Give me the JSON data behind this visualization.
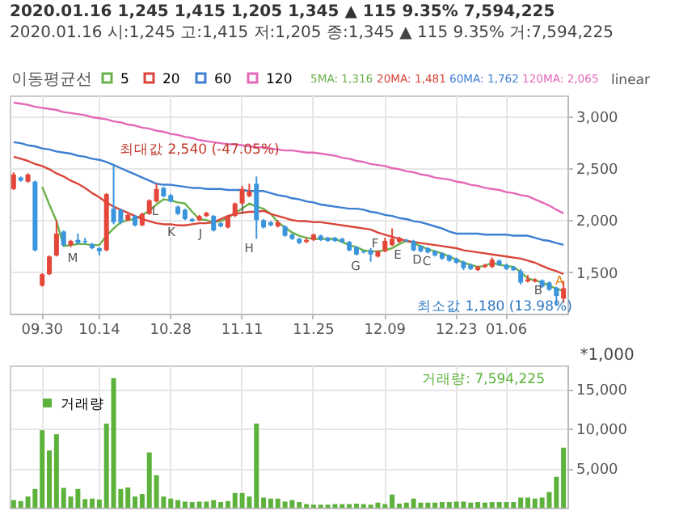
{
  "chart_data": [
    {
      "type": "candlestick",
      "title": "2020.01.16  1,245  1,415  1,205  1,345 ▲ 115 9.35%  7,594,225",
      "subtitle": "2020.01.16 시:1,245 고:1,415 저:1,205 종:1,345 ▲ 115 9.35% 거:7,594,225",
      "legend_title": "이동평균선",
      "categories": [
        null,
        null,
        null,
        null,
        "09.30",
        null,
        null,
        null,
        null,
        null,
        null,
        null,
        "10.14",
        null,
        null,
        null,
        null,
        null,
        null,
        null,
        null,
        null,
        "10.28",
        null,
        null,
        null,
        null,
        null,
        null,
        null,
        null,
        null,
        "11.11",
        null,
        null,
        null,
        null,
        null,
        null,
        null,
        null,
        null,
        "11.25",
        null,
        null,
        null,
        null,
        null,
        null,
        null,
        null,
        null,
        "12.09",
        null,
        null,
        null,
        null,
        null,
        null,
        null,
        null,
        null,
        "12.23",
        null,
        null,
        null,
        null,
        null,
        null,
        "01.06",
        null,
        null,
        null,
        null,
        null,
        null,
        null,
        null
      ],
      "ohlc": [
        [
          2300,
          2460,
          2290,
          2440
        ],
        [
          2410,
          2420,
          2370,
          2380
        ],
        [
          2370,
          2450,
          2360,
          2440
        ],
        [
          2370,
          2380,
          1700,
          1710
        ],
        [
          1370,
          1490,
          1360,
          1480
        ],
        [
          1480,
          1660,
          1470,
          1650
        ],
        [
          1660,
          2000,
          1650,
          1870
        ],
        [
          1890,
          1900,
          1750,
          1760
        ],
        [
          1760,
          1810,
          1740,
          1800
        ],
        [
          1810,
          1870,
          1770,
          1780
        ],
        [
          1800,
          1830,
          1770,
          1790
        ],
        [
          1770,
          1780,
          1720,
          1730
        ],
        [
          1730,
          1740,
          1660,
          1700
        ],
        [
          1710,
          2260,
          1700,
          2250
        ],
        [
          2110,
          2540,
          1960,
          1980
        ],
        [
          2100,
          2110,
          1960,
          1980
        ],
        [
          2000,
          2060,
          1990,
          2050
        ],
        [
          2040,
          2050,
          1940,
          1950
        ],
        [
          1950,
          2070,
          1940,
          2060
        ],
        [
          2060,
          2200,
          2050,
          2190
        ],
        [
          2180,
          2350,
          2170,
          2300
        ],
        [
          2310,
          2320,
          2220,
          2230
        ],
        [
          2240,
          2250,
          2170,
          2180
        ],
        [
          2130,
          2140,
          2050,
          2060
        ],
        [
          2100,
          2110,
          2000,
          2010
        ],
        [
          2010,
          2020,
          1980,
          1990
        ],
        [
          2000,
          2050,
          1990,
          2040
        ],
        [
          2040,
          2080,
          2030,
          2070
        ],
        [
          2040,
          2050,
          1890,
          1900
        ],
        [
          1970,
          1980,
          1930,
          1940
        ],
        [
          1930,
          2050,
          1920,
          2040
        ],
        [
          2040,
          2170,
          2030,
          2160
        ],
        [
          2160,
          2330,
          2150,
          2300
        ],
        [
          2230,
          2350,
          2220,
          2280
        ],
        [
          2350,
          2420,
          1820,
          2000
        ],
        [
          2000,
          2010,
          1920,
          1930
        ],
        [
          1980,
          1990,
          1940,
          1950
        ],
        [
          1940,
          2000,
          1930,
          1980
        ],
        [
          1940,
          1950,
          1840,
          1850
        ],
        [
          1860,
          1870,
          1810,
          1820
        ],
        [
          1820,
          1830,
          1770,
          1780
        ],
        [
          1790,
          1830,
          1780,
          1810
        ],
        [
          1810,
          1870,
          1800,
          1860
        ],
        [
          1850,
          1860,
          1800,
          1810
        ],
        [
          1830,
          1840,
          1790,
          1800
        ],
        [
          1830,
          1840,
          1790,
          1800
        ],
        [
          1820,
          1830,
          1780,
          1790
        ],
        [
          1790,
          1800,
          1700,
          1710
        ],
        [
          1740,
          1750,
          1660,
          1670
        ],
        [
          1700,
          1710,
          1680,
          1690
        ],
        [
          1710,
          1730,
          1600,
          1670
        ],
        [
          1650,
          1710,
          1640,
          1700
        ],
        [
          1700,
          1830,
          1690,
          1800
        ],
        [
          1760,
          1920,
          1750,
          1820
        ],
        [
          1790,
          1840,
          1780,
          1830
        ],
        [
          1810,
          1820,
          1790,
          1800
        ],
        [
          1800,
          1810,
          1700,
          1710
        ],
        [
          1750,
          1760,
          1690,
          1700
        ],
        [
          1730,
          1740,
          1680,
          1690
        ],
        [
          1700,
          1710,
          1650,
          1660
        ],
        [
          1680,
          1690,
          1620,
          1630
        ],
        [
          1660,
          1670,
          1600,
          1610
        ],
        [
          1630,
          1640,
          1580,
          1590
        ],
        [
          1600,
          1610,
          1520,
          1540
        ],
        [
          1570,
          1580,
          1520,
          1530
        ],
        [
          1520,
          1560,
          1510,
          1550
        ],
        [
          1550,
          1580,
          1540,
          1570
        ],
        [
          1550,
          1640,
          1540,
          1620
        ],
        [
          1610,
          1620,
          1560,
          1570
        ],
        [
          1570,
          1580,
          1520,
          1530
        ],
        [
          1550,
          1560,
          1510,
          1520
        ],
        [
          1510,
          1530,
          1380,
          1400
        ],
        [
          1410,
          1470,
          1400,
          1430
        ],
        [
          1410,
          1440,
          1400,
          1430
        ],
        [
          1420,
          1430,
          1350,
          1360
        ],
        [
          1400,
          1410,
          1320,
          1330
        ],
        [
          1350,
          1360,
          1180,
          1270
        ],
        [
          1245,
          1415,
          1205,
          1345
        ]
      ],
      "series": [
        {
          "name": "5",
          "type": "line",
          "color": "#6ab04c",
          "values": [
            null,
            null,
            null,
            null,
            2320,
            2150,
            1990,
            1750,
            1760,
            1770,
            1770,
            1760,
            1760,
            1850,
            1920,
            1980,
            2000,
            2010,
            2050,
            2090,
            2150,
            2200,
            2190,
            2170,
            2160,
            2080,
            2010,
            2000,
            1980,
            1990,
            2020,
            2070,
            2110,
            2160,
            2130,
            2110,
            2060,
            1980,
            1930,
            1880,
            1850,
            1830,
            1820,
            1820,
            1820,
            1820,
            1790,
            1760,
            1740,
            1710,
            1700,
            1700,
            1710,
            1730,
            1770,
            1800,
            1780,
            1750,
            1720,
            1700,
            1680,
            1650,
            1620,
            1590,
            1570,
            1550,
            1560,
            1590,
            1570,
            1560,
            1550,
            1500,
            1440,
            1420,
            1400,
            1370,
            1340,
            1316
          ]
        },
        {
          "name": "20",
          "type": "line",
          "color": "#d9453a",
          "values": [
            2610,
            2590,
            2570,
            2540,
            2520,
            2490,
            2450,
            2420,
            2380,
            2350,
            2310,
            2260,
            2220,
            2170,
            2130,
            2100,
            2070,
            2040,
            2010,
            1990,
            1970,
            1960,
            1960,
            1950,
            1950,
            1960,
            1970,
            1970,
            1980,
            2010,
            2040,
            2060,
            2070,
            2080,
            2080,
            2090,
            2060,
            2040,
            2020,
            2000,
            1990,
            1990,
            1980,
            1980,
            1970,
            1960,
            1950,
            1940,
            1930,
            1920,
            1910,
            1880,
            1860,
            1840,
            1820,
            1800,
            1790,
            1780,
            1770,
            1760,
            1750,
            1740,
            1730,
            1710,
            1700,
            1690,
            1680,
            1670,
            1660,
            1650,
            1640,
            1630,
            1610,
            1590,
            1560,
            1530,
            1510,
            1481
          ]
        },
        {
          "name": "60",
          "type": "line",
          "color": "#3c7fd1",
          "values": [
            2750,
            2740,
            2720,
            2710,
            2690,
            2680,
            2660,
            2650,
            2640,
            2620,
            2610,
            2590,
            2580,
            2560,
            2530,
            2500,
            2470,
            2440,
            2410,
            2380,
            2350,
            2340,
            2340,
            2330,
            2320,
            2310,
            2310,
            2300,
            2300,
            2300,
            2290,
            2290,
            2290,
            2280,
            2280,
            2280,
            2260,
            2240,
            2230,
            2210,
            2200,
            2180,
            2170,
            2150,
            2140,
            2130,
            2120,
            2110,
            2110,
            2100,
            2080,
            2070,
            2050,
            2040,
            2020,
            2010,
            1990,
            1980,
            1960,
            1940,
            1920,
            1890,
            1870,
            1870,
            1870,
            1870,
            1860,
            1860,
            1860,
            1860,
            1850,
            1850,
            1850,
            1830,
            1810,
            1800,
            1780,
            1762
          ]
        },
        {
          "name": "120",
          "type": "line",
          "color": "#e468b8",
          "values": [
            3130,
            3120,
            3110,
            3090,
            3080,
            3070,
            3060,
            3040,
            3030,
            3020,
            3010,
            2990,
            2980,
            2970,
            2950,
            2940,
            2920,
            2910,
            2890,
            2880,
            2860,
            2850,
            2830,
            2820,
            2800,
            2790,
            2770,
            2760,
            2750,
            2740,
            2730,
            2730,
            2720,
            2710,
            2700,
            2700,
            2690,
            2680,
            2670,
            2670,
            2660,
            2650,
            2650,
            2640,
            2630,
            2620,
            2600,
            2590,
            2570,
            2560,
            2540,
            2530,
            2520,
            2500,
            2490,
            2470,
            2460,
            2440,
            2430,
            2410,
            2400,
            2390,
            2370,
            2360,
            2340,
            2330,
            2310,
            2300,
            2290,
            2270,
            2260,
            2240,
            2230,
            2200,
            2170,
            2140,
            2100,
            2065
          ]
        }
      ],
      "ylim": [
        1100,
        3200
      ],
      "yticks": [
        {
          "value": 1500,
          "label": "1,500"
        },
        {
          "value": 2000,
          "label": "2,000"
        },
        {
          "value": 2500,
          "label": "2,500"
        },
        {
          "value": 3000,
          "label": "3,000"
        }
      ],
      "grid": true,
      "legend": "top left",
      "annotations": [
        "linear",
        "5MA: 1,316",
        "20MA: 1,481",
        "60MA: 1,762",
        "120MA: 2,065",
        "최대값 2,540 (-47.05%)",
        "최소값 1,180 (13.98%)",
        "M",
        "L",
        "K",
        "J",
        "I",
        "H",
        "G",
        "F",
        "E",
        "D",
        "C",
        "B",
        "A"
      ]
    },
    {
      "type": "bar",
      "ylabel": "*1,000",
      "categories": [
        null,
        null,
        null,
        null,
        "09.30",
        null,
        null,
        null,
        null,
        null,
        null,
        null,
        "10.14",
        null,
        null,
        null,
        null,
        null,
        null,
        null,
        null,
        null,
        "10.28",
        null,
        null,
        null,
        null,
        null,
        null,
        null,
        null,
        null,
        "11.11",
        null,
        null,
        null,
        null,
        null,
        null,
        null,
        null,
        null,
        "11.25",
        null,
        null,
        null,
        null,
        null,
        null,
        null,
        null,
        null,
        "12.09",
        null,
        null,
        null,
        null,
        null,
        null,
        null,
        null,
        null,
        "12.23",
        null,
        null,
        null,
        null,
        null,
        null,
        "01.06",
        null,
        null,
        null,
        null,
        null,
        null,
        null,
        null
      ],
      "series": [
        {
          "name": "거래량",
          "color": "#5cb23a",
          "values": [
            960,
            830,
            1410,
            2370,
            9800,
            7240,
            9290,
            2500,
            1410,
            2370,
            1090,
            1150,
            1030,
            10640,
            16400,
            2370,
            2560,
            1410,
            1730,
            6990,
            4100,
            1410,
            1150,
            960,
            770,
            710,
            770,
            770,
            960,
            710,
            830,
            1860,
            1860,
            1410,
            10640,
            1280,
            1150,
            1150,
            770,
            960,
            710,
            450,
            380,
            380,
            380,
            450,
            450,
            450,
            510,
            450,
            380,
            640,
            450,
            1660,
            510,
            640,
            1150,
            640,
            640,
            640,
            710,
            710,
            770,
            770,
            640,
            710,
            640,
            710,
            710,
            710,
            710,
            1280,
            1280,
            1150,
            1280,
            1990,
            3910,
            7594
          ]
        }
      ],
      "ylim": [
        0,
        18000
      ],
      "yticks": [
        {
          "value": 5000,
          "label": "5,000"
        },
        {
          "value": 10000,
          "label": "10,000"
        },
        {
          "value": 15000,
          "label": "15,000"
        }
      ],
      "grid": true,
      "legend": "top left",
      "tick_labels": "y",
      "annotations": [
        "거래량: 7,594,225"
      ]
    }
  ]
}
